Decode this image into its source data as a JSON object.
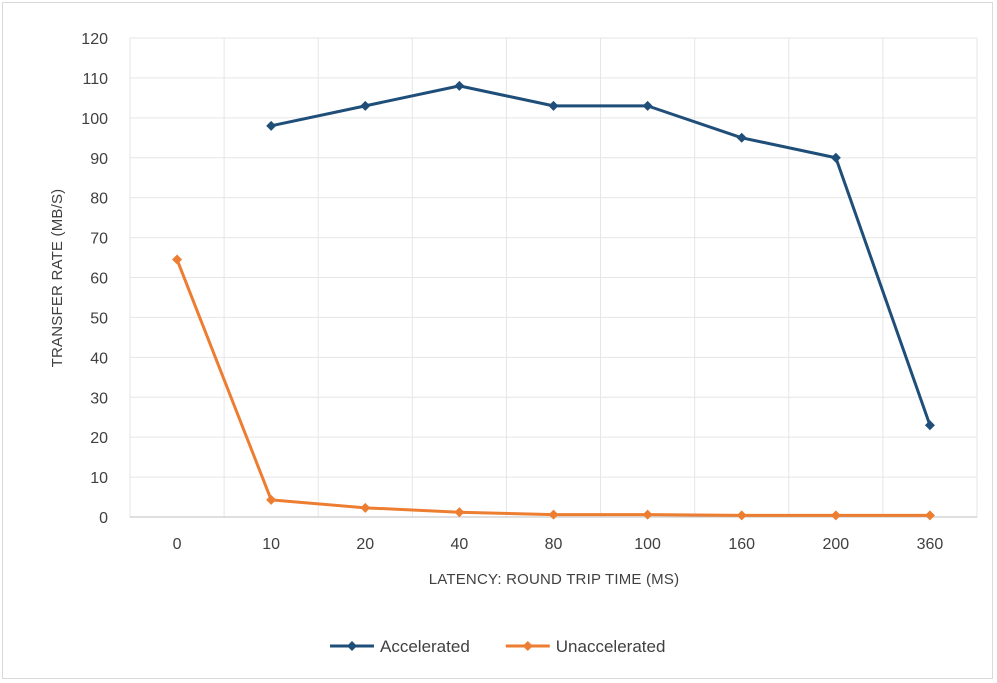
{
  "chart_data": {
    "type": "line",
    "title": "",
    "xlabel": "LATENCY: ROUND TRIP TIME (MS)",
    "ylabel": "TRANSFER RATE (MB/S)",
    "categories": [
      "0",
      "10",
      "20",
      "40",
      "80",
      "100",
      "160",
      "200",
      "360"
    ],
    "ylim": [
      0,
      120
    ],
    "ystep": 10,
    "grid": true,
    "legend_position": "bottom",
    "series": [
      {
        "name": "Accelerated",
        "color": "#1f4e79",
        "values": [
          null,
          98,
          103,
          108,
          103,
          103,
          95,
          90,
          23
        ]
      },
      {
        "name": "Unaccelerated",
        "color": "#ed7d31",
        "values": [
          64.5,
          4.3,
          2.3,
          1.2,
          0.6,
          0.6,
          0.4,
          0.4,
          0.4
        ]
      }
    ]
  }
}
